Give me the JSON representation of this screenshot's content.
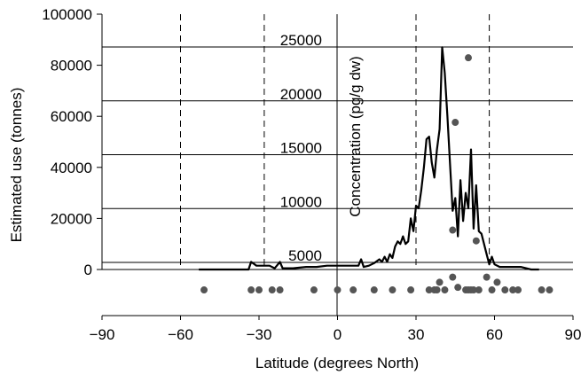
{
  "chart_data": {
    "type": "line",
    "xlabel": "Latitude (degrees North)",
    "ylabel": "Estimated use (tonnes)",
    "y2label": "Concentration (pg/g dw)",
    "xlim": [
      -90,
      90
    ],
    "ylim": [
      0,
      100000
    ],
    "y2lim": [
      5000,
      25000
    ],
    "x_ticks": [
      -90,
      -60,
      -30,
      0,
      30,
      60,
      90
    ],
    "x_tick_labels": [
      "−90",
      "−60",
      "−30",
      "0",
      "30",
      "60",
      "90"
    ],
    "y_ticks": [
      0,
      20000,
      40000,
      60000,
      80000,
      100000
    ],
    "y_tick_labels": [
      "0",
      "20000",
      "40000",
      "60000",
      "80000",
      "100000"
    ],
    "y2_ticks": [
      5000,
      10000,
      15000,
      20000,
      25000
    ],
    "y2_tick_labels": [
      "5000",
      "10000",
      "15000",
      "20000",
      "25000"
    ],
    "vertical_reference_lines": [
      -60,
      -28,
      30,
      58
    ],
    "grid": "horizontal lines at right-axis ticks",
    "series": [
      {
        "type": "line",
        "color": "#000000",
        "x": [
          -53,
          -34,
          -33,
          -31,
          -28,
          -26,
          -24,
          -22,
          -21,
          -19,
          -17,
          -12,
          -8,
          -4,
          0,
          4,
          8,
          9,
          10,
          12,
          14,
          16,
          17,
          18,
          19,
          20,
          21,
          22,
          23,
          24,
          25,
          26,
          27,
          28,
          29,
          30,
          31,
          32,
          33,
          34,
          35,
          36,
          37,
          38,
          39,
          40,
          41,
          42,
          43,
          44,
          45,
          46,
          47,
          48,
          49,
          50,
          51,
          52,
          53,
          54,
          55,
          56,
          57,
          58,
          59,
          60,
          62,
          66,
          70,
          74,
          77
        ],
        "y": [
          0,
          0,
          3000,
          1500,
          1500,
          1500,
          500,
          3000,
          500,
          500,
          500,
          1000,
          1000,
          1500,
          1500,
          1500,
          1500,
          4000,
          1000,
          1500,
          2500,
          4000,
          3000,
          5000,
          3000,
          6000,
          4500,
          9000,
          11000,
          10000,
          13000,
          10000,
          11000,
          20000,
          15000,
          25000,
          24000,
          31000,
          40000,
          51000,
          52000,
          42000,
          36000,
          47000,
          55000,
          87000,
          77000,
          60000,
          41000,
          23000,
          28000,
          13000,
          35000,
          19000,
          30000,
          24000,
          47000,
          16000,
          33000,
          15000,
          14000,
          10000,
          6000,
          2000,
          5000,
          2000,
          1000,
          1000,
          1000,
          0,
          0
        ]
      },
      {
        "type": "scatter",
        "color": "#555555",
        "x": [
          -51,
          -33,
          -30,
          -25,
          -22,
          -9,
          0,
          6,
          14,
          21,
          28,
          35,
          37,
          38,
          39,
          41,
          44,
          46,
          49,
          50,
          51,
          52,
          54,
          57,
          59,
          61,
          64,
          67,
          69,
          78,
          81
        ],
        "y": [
          -8000,
          -8000,
          -8000,
          -8000,
          -8000,
          -8000,
          -8000,
          -8000,
          -8000,
          -8000,
          -8000,
          -8000,
          -8000,
          -8000,
          -5000,
          -8000,
          -3000,
          -7000,
          -8000,
          -8000,
          -8000,
          -8000,
          -8000,
          -3000,
          -8000,
          -5000,
          -8000,
          -8000,
          -8000,
          -8000,
          -8000
        ]
      },
      {
        "type": "scatter",
        "color": "#555555",
        "x": [
          45,
          50,
          44,
          53
        ],
        "y": [
          18000,
          24000,
          8000,
          7000
        ],
        "axis": "right"
      }
    ]
  }
}
